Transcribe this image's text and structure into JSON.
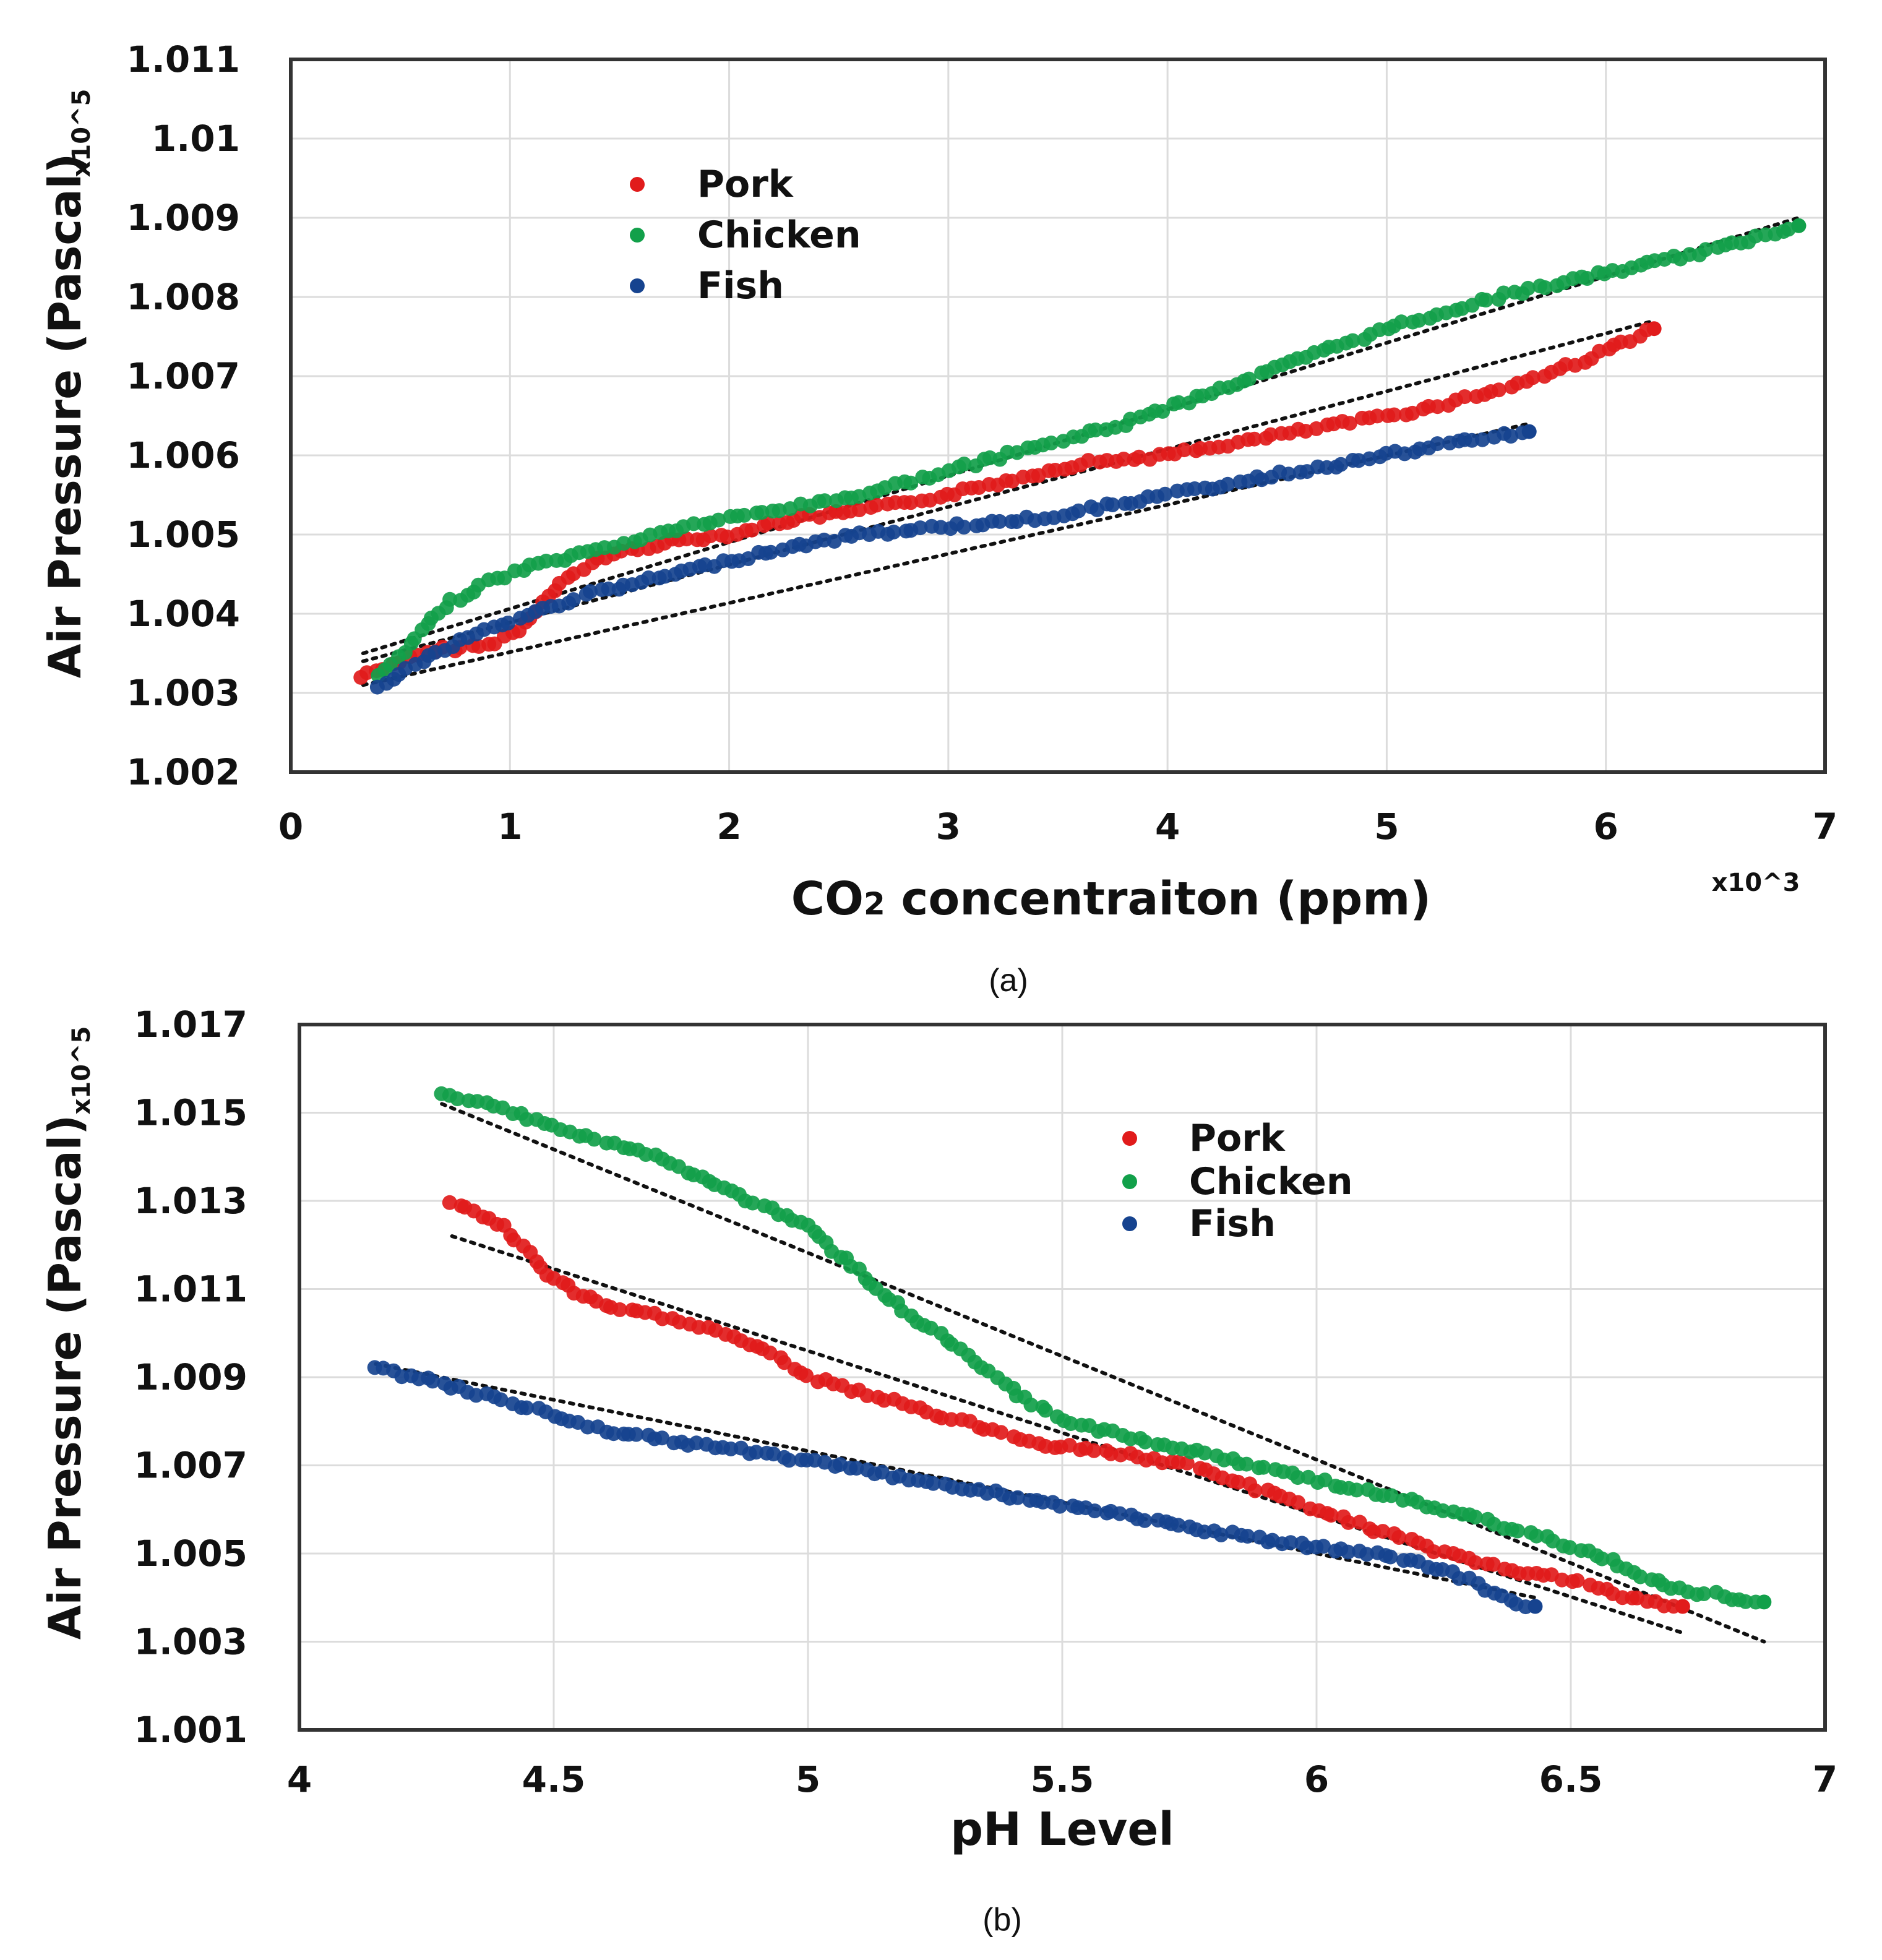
{
  "chart_data": [
    {
      "type": "scatter",
      "panel_caption": "(a)",
      "xlabel_main": "CO",
      "xlabel_sub": "2",
      "xlabel_rest": " concentraiton (ppm)",
      "x_multiplier": "x10^3",
      "ylabel": "Air Pressure (Pascal)",
      "y_multiplier": "x10^5",
      "xlim": [
        0,
        7
      ],
      "ylim": [
        1.002,
        1.011
      ],
      "x_ticks": [
        0,
        1,
        2,
        3,
        4,
        5,
        6,
        7
      ],
      "y_ticks": [
        1.002,
        1.003,
        1.004,
        1.005,
        1.006,
        1.007,
        1.008,
        1.009,
        1.01,
        1.011
      ],
      "x_tick_labels": [
        "0",
        "1",
        "2",
        "3",
        "4",
        "5",
        "6",
        "7"
      ],
      "y_tick_labels": [
        "1.002",
        "1.003",
        "1.004",
        "1.005",
        "1.006",
        "1.007",
        "1.008",
        "1.009",
        "1.01",
        "1.011"
      ],
      "grid": true,
      "legend_position": "upper-left",
      "series": [
        {
          "name": "Pork",
          "color": "#e11b1b",
          "points": [
            [
              0.32,
              1.0032
            ],
            [
              0.5,
              1.0034
            ],
            [
              0.7,
              1.00355
            ],
            [
              0.9,
              1.0036
            ],
            [
              1.05,
              1.0038
            ],
            [
              1.2,
              1.0043
            ],
            [
              1.4,
              1.0047
            ],
            [
              1.7,
              1.0049
            ],
            [
              2.0,
              1.005
            ],
            [
              2.3,
              1.0052
            ],
            [
              2.6,
              1.0053
            ],
            [
              3.0,
              1.0055
            ],
            [
              3.3,
              1.0057
            ],
            [
              3.6,
              1.0059
            ],
            [
              4.0,
              1.006
            ],
            [
              4.4,
              1.0062
            ],
            [
              4.8,
              1.0064
            ],
            [
              5.2,
              1.0066
            ],
            [
              5.6,
              1.0069
            ],
            [
              5.9,
              1.0072
            ],
            [
              6.22,
              1.0076
            ]
          ],
          "trend": [
            [
              0.33,
              1.0034
            ],
            [
              6.22,
              1.0077
            ]
          ]
        },
        {
          "name": "Chicken",
          "color": "#12a04a",
          "points": [
            [
              0.4,
              1.0032
            ],
            [
              0.55,
              1.0036
            ],
            [
              0.7,
              1.0041
            ],
            [
              0.9,
              1.0044
            ],
            [
              1.1,
              1.0046
            ],
            [
              1.4,
              1.0048
            ],
            [
              1.8,
              1.0051
            ],
            [
              2.2,
              1.0053
            ],
            [
              2.6,
              1.0055
            ],
            [
              3.0,
              1.0058
            ],
            [
              3.4,
              1.0061
            ],
            [
              3.8,
              1.0064
            ],
            [
              4.2,
              1.0068
            ],
            [
              4.6,
              1.0072
            ],
            [
              5.0,
              1.0076
            ],
            [
              5.5,
              1.008
            ],
            [
              6.0,
              1.0083
            ],
            [
              6.5,
              1.0086
            ],
            [
              6.88,
              1.0089
            ]
          ],
          "trend": [
            [
              0.33,
              1.0035
            ],
            [
              6.88,
              1.009
            ]
          ]
        },
        {
          "name": "Fish",
          "color": "#16438f",
          "points": [
            [
              0.4,
              1.0031
            ],
            [
              0.6,
              1.0034
            ],
            [
              0.8,
              1.0037
            ],
            [
              1.0,
              1.0039
            ],
            [
              1.3,
              1.0042
            ],
            [
              1.6,
              1.0044
            ],
            [
              1.9,
              1.0046
            ],
            [
              2.2,
              1.0048
            ],
            [
              2.6,
              1.005
            ],
            [
              3.0,
              1.0051
            ],
            [
              3.4,
              1.0052
            ],
            [
              3.8,
              1.0054
            ],
            [
              4.2,
              1.0056
            ],
            [
              4.6,
              1.0058
            ],
            [
              5.0,
              1.006
            ],
            [
              5.4,
              1.0062
            ],
            [
              5.65,
              1.0063
            ]
          ],
          "trend": [
            [
              0.33,
              1.0031
            ],
            [
              5.65,
              1.0064
            ]
          ]
        }
      ]
    },
    {
      "type": "scatter",
      "panel_caption": "(b)",
      "xlabel": "pH Level",
      "ylabel": "Air Pressure (Pascal)",
      "y_multiplier": "x10^5",
      "xlim": [
        4,
        7
      ],
      "ylim": [
        1.001,
        1.017
      ],
      "x_ticks": [
        4,
        4.5,
        5,
        5.5,
        6,
        6.5,
        7
      ],
      "y_ticks": [
        1.001,
        1.003,
        1.005,
        1.007,
        1.009,
        1.011,
        1.013,
        1.015,
        1.017
      ],
      "x_tick_labels": [
        "4",
        "4.5",
        "5",
        "5.5",
        "6",
        "6.5",
        "7"
      ],
      "y_tick_labels": [
        "1.001",
        "1.003",
        "1.005",
        "1.007",
        "1.009",
        "1.011",
        "1.013",
        "1.015",
        "1.017"
      ],
      "grid": true,
      "legend_position": "upper-right",
      "series": [
        {
          "name": "Pork",
          "color": "#e11b1b",
          "points": [
            [
              4.3,
              1.013
            ],
            [
              4.4,
              1.0124
            ],
            [
              4.5,
              1.0112
            ],
            [
              4.6,
              1.0106
            ],
            [
              4.75,
              1.0103
            ],
            [
              4.9,
              1.0097
            ],
            [
              5.0,
              1.009
            ],
            [
              5.15,
              1.0085
            ],
            [
              5.3,
              1.008
            ],
            [
              5.45,
              1.0075
            ],
            [
              5.6,
              1.0073
            ],
            [
              5.75,
              1.007
            ],
            [
              5.9,
              1.0064
            ],
            [
              6.05,
              1.0058
            ],
            [
              6.2,
              1.0052
            ],
            [
              6.35,
              1.0047
            ],
            [
              6.5,
              1.0044
            ],
            [
              6.6,
              1.004
            ],
            [
              6.72,
              1.0038
            ]
          ],
          "trend": [
            [
              4.3,
              1.0122
            ],
            [
              6.72,
              1.0032
            ]
          ]
        },
        {
          "name": "Chicken",
          "color": "#12a04a",
          "points": [
            [
              4.28,
              1.0154
            ],
            [
              4.4,
              1.0151
            ],
            [
              4.55,
              1.0145
            ],
            [
              4.7,
              1.014
            ],
            [
              4.85,
              1.0132
            ],
            [
              5.0,
              1.0124
            ],
            [
              5.1,
              1.0114
            ],
            [
              5.2,
              1.0104
            ],
            [
              5.3,
              1.0096
            ],
            [
              5.4,
              1.0087
            ],
            [
              5.5,
              1.008
            ],
            [
              5.65,
              1.0076
            ],
            [
              5.8,
              1.0072
            ],
            [
              5.95,
              1.0068
            ],
            [
              6.1,
              1.0064
            ],
            [
              6.25,
              1.006
            ],
            [
              6.4,
              1.0055
            ],
            [
              6.55,
              1.005
            ],
            [
              6.7,
              1.0042
            ],
            [
              6.88,
              1.0039
            ]
          ],
          "trend": [
            [
              4.28,
              1.0152
            ],
            [
              6.88,
              1.003
            ]
          ]
        },
        {
          "name": "Fish",
          "color": "#16438f",
          "points": [
            [
              4.15,
              1.0092
            ],
            [
              4.3,
              1.0088
            ],
            [
              4.45,
              1.0083
            ],
            [
              4.6,
              1.0078
            ],
            [
              4.75,
              1.0075
            ],
            [
              4.9,
              1.0073
            ],
            [
              5.05,
              1.007
            ],
            [
              5.2,
              1.0067
            ],
            [
              5.35,
              1.0064
            ],
            [
              5.5,
              1.0061
            ],
            [
              5.65,
              1.0058
            ],
            [
              5.8,
              1.0055
            ],
            [
              5.95,
              1.0052
            ],
            [
              6.1,
              1.005
            ],
            [
              6.2,
              1.0048
            ],
            [
              6.3,
              1.0044
            ],
            [
              6.38,
              1.0039
            ],
            [
              6.43,
              1.0038
            ]
          ],
          "trend": [
            [
              4.15,
              1.0093
            ],
            [
              6.43,
              1.004
            ]
          ]
        }
      ]
    }
  ]
}
